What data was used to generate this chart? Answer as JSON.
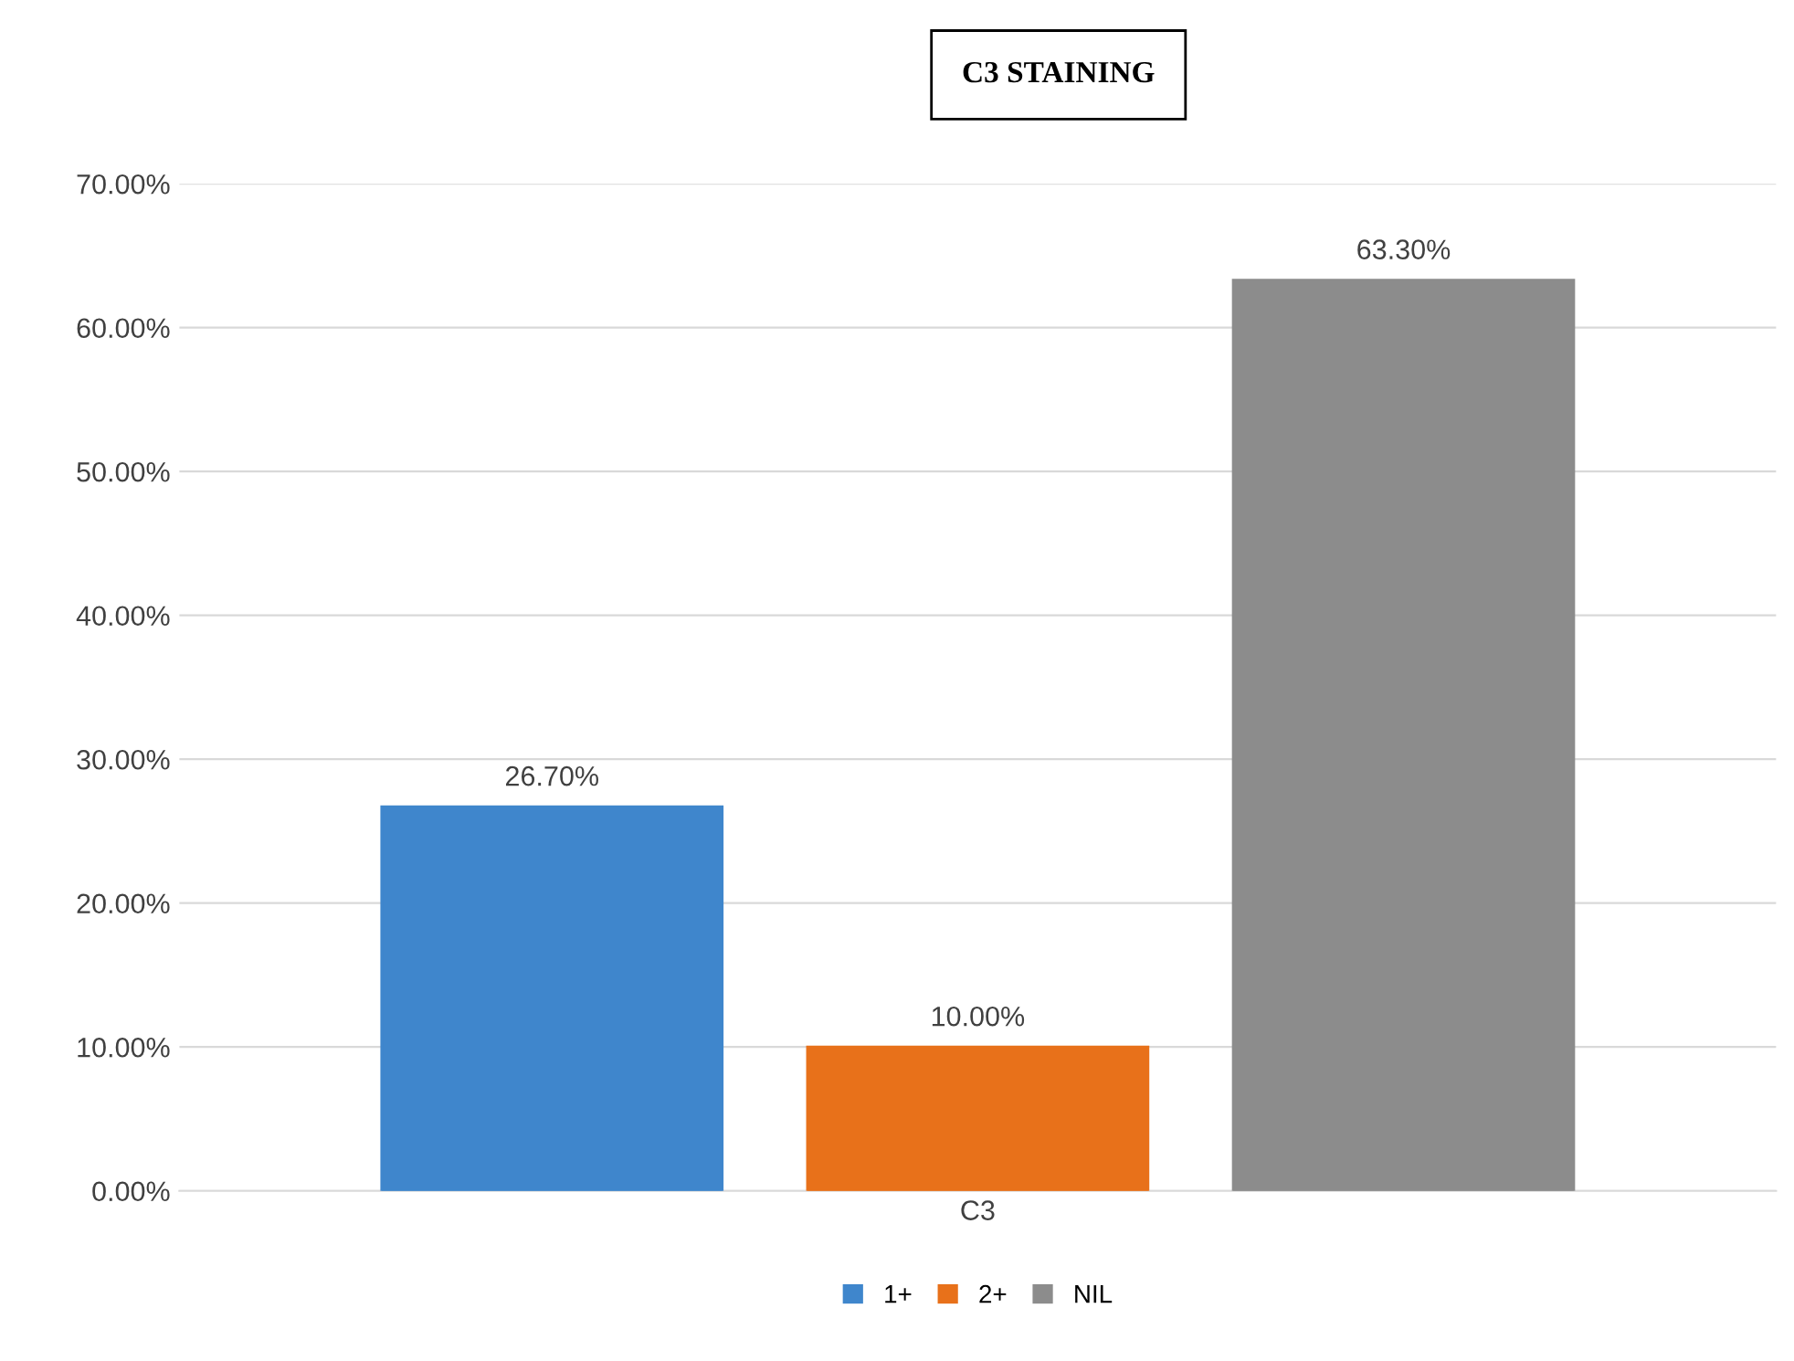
{
  "chart_data": {
    "type": "bar",
    "title": "C3 STAINING",
    "categories": [
      "C3"
    ],
    "series": [
      {
        "name": "1+",
        "color": "#3f86cc",
        "values": [
          26.7
        ],
        "value_labels": [
          "26.70%"
        ]
      },
      {
        "name": "2+",
        "color": "#e8711a",
        "values": [
          10.0
        ],
        "value_labels": [
          "10.00%"
        ]
      },
      {
        "name": "NIL",
        "color": "#8c8c8c",
        "values": [
          63.3
        ],
        "value_labels": [
          "63.30%"
        ]
      }
    ],
    "ylim": [
      0,
      70
    ],
    "yticks": [
      {
        "value": 0,
        "label": "0.00%"
      },
      {
        "value": 10,
        "label": "10.00%"
      },
      {
        "value": 20,
        "label": "20.00%"
      },
      {
        "value": 30,
        "label": "30.00%"
      },
      {
        "value": 40,
        "label": "40.00%"
      },
      {
        "value": 50,
        "label": "50.00%"
      },
      {
        "value": 60,
        "label": "60.00%"
      },
      {
        "value": 70,
        "label": "70.00%"
      }
    ],
    "grid": "y",
    "legend": "bottom"
  }
}
